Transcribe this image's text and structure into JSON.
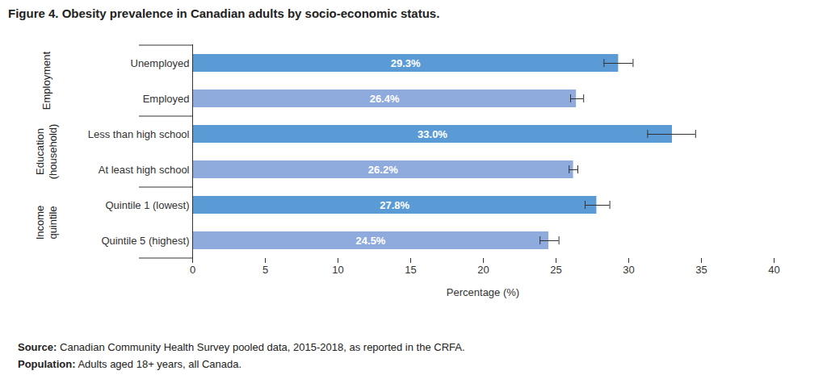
{
  "chart_data": {
    "type": "bar",
    "orientation": "horizontal",
    "title": "Figure 4. Obesity prevalence in Canadian adults by socio-economic status.",
    "categories": [
      "Unemployed",
      "Employed",
      "Less than high school",
      "At least high school",
      "Quintile 1 (lowest)",
      "Quintile 5 (highest)"
    ],
    "groups": [
      "Employment",
      "Employment",
      "Education (household)",
      "Education (household)",
      "Income quintile",
      "Income quintile"
    ],
    "values": [
      29.3,
      26.4,
      33.0,
      26.2,
      27.8,
      24.5
    ],
    "value_labels": [
      "29.3%",
      "26.4%",
      "33.0%",
      "26.2%",
      "27.8%",
      "24.5%"
    ],
    "error_low": [
      28.3,
      26.0,
      31.3,
      25.9,
      27.0,
      23.9
    ],
    "error_high": [
      30.3,
      26.9,
      34.6,
      26.5,
      28.7,
      25.2
    ],
    "colors": [
      "#5b9bd5",
      "#8faadc",
      "#5b9bd5",
      "#8faadc",
      "#5b9bd5",
      "#8faadc"
    ],
    "data_labels": true,
    "xlabel": "Percentage (%)",
    "xlim": [
      0,
      40
    ],
    "xticks": [
      0,
      5,
      10,
      15,
      20,
      25,
      30,
      35,
      40
    ],
    "grid": false,
    "notes": [
      {
        "label": "Source:",
        "text": "Canadian Community Health Survey pooled data, 2015-2018, as reported in the CRFA."
      },
      {
        "label": "Population:",
        "text": "Adults aged 18+ years, all Canada."
      }
    ]
  }
}
